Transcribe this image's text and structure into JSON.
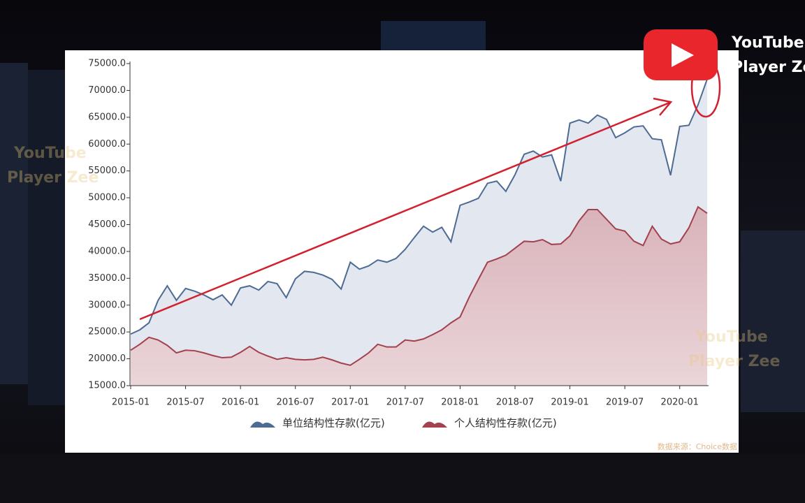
{
  "chart_data": {
    "type": "area",
    "categories": [
      "2015-01",
      null,
      null,
      null,
      null,
      null,
      "2015-07",
      null,
      null,
      null,
      null,
      null,
      "2016-01",
      null,
      null,
      null,
      null,
      null,
      "2016-07",
      null,
      null,
      null,
      null,
      null,
      "2017-01",
      null,
      null,
      null,
      null,
      null,
      "2017-07",
      null,
      null,
      null,
      null,
      null,
      "2018-01",
      null,
      null,
      null,
      null,
      null,
      "2018-07",
      null,
      null,
      null,
      null,
      null,
      "2019-01",
      null,
      null,
      null,
      null,
      null,
      "2019-07",
      null,
      null,
      null,
      null,
      null,
      "2020-01",
      null,
      null,
      null
    ],
    "series": [
      {
        "name": "单位结构性存款(亿元)",
        "color": "#4d6b93",
        "fill": "#dfe4ee",
        "values": [
          24600,
          25400,
          26700,
          30900,
          33600,
          30900,
          33100,
          32600,
          31900,
          31000,
          31900,
          30000,
          33200,
          33600,
          32800,
          34400,
          34000,
          31400,
          34900,
          36300,
          36100,
          35600,
          34800,
          33000,
          38000,
          36700,
          37300,
          38400,
          38000,
          38700,
          40400,
          42600,
          44700,
          43600,
          44500,
          41800,
          48600,
          49200,
          49900,
          52700,
          53100,
          51200,
          54300,
          58100,
          58700,
          57600,
          58000,
          53100,
          63900,
          64500,
          63900,
          65400,
          64600,
          61200,
          62100,
          63200,
          63400,
          61000,
          60800,
          54200,
          63300,
          63500,
          67300,
          72100
        ]
      },
      {
        "name": "个人结构性存款(亿元)",
        "color": "#a3414d",
        "fill": "#d7a9b0",
        "values": [
          21600,
          22700,
          24000,
          23500,
          22500,
          21100,
          21600,
          21500,
          21100,
          20600,
          20200,
          20300,
          21200,
          22300,
          21200,
          20500,
          19900,
          20200,
          19900,
          19800,
          19900,
          20300,
          19800,
          19200,
          18800,
          19900,
          21100,
          22700,
          22200,
          22200,
          23500,
          23300,
          23700,
          24500,
          25400,
          26700,
          27800,
          31500,
          34800,
          38000,
          38600,
          39300,
          40600,
          41900,
          41800,
          42200,
          41300,
          41400,
          42900,
          45700,
          47800,
          47800,
          46000,
          44200,
          43800,
          41900,
          41100,
          44700,
          42300,
          41400,
          41800,
          44400,
          48300,
          47100
        ]
      }
    ],
    "ylim": [
      15000,
      75000
    ],
    "yticks": [
      {
        "value": 15000,
        "label": "15000.0"
      },
      {
        "value": 20000,
        "label": "20000.0"
      },
      {
        "value": 25000,
        "label": "25000.0"
      },
      {
        "value": 30000,
        "label": "30000.0"
      },
      {
        "value": 35000,
        "label": "35000.0"
      },
      {
        "value": 40000,
        "label": "40000.0"
      },
      {
        "value": 45000,
        "label": "45000.0"
      },
      {
        "value": 50000,
        "label": "50000.0"
      },
      {
        "value": 55000,
        "label": "55000.0"
      },
      {
        "value": 60000,
        "label": "60000.0"
      },
      {
        "value": 65000,
        "label": "65000.0"
      },
      {
        "value": 70000,
        "label": "70000.0"
      },
      {
        "value": 75000,
        "label": "75000.0"
      }
    ],
    "grid": false,
    "legend": "bottom",
    "source": "数据来源：Choice数据"
  },
  "overlay": {
    "watermark": [
      "YouTube",
      "Player Zee"
    ]
  }
}
